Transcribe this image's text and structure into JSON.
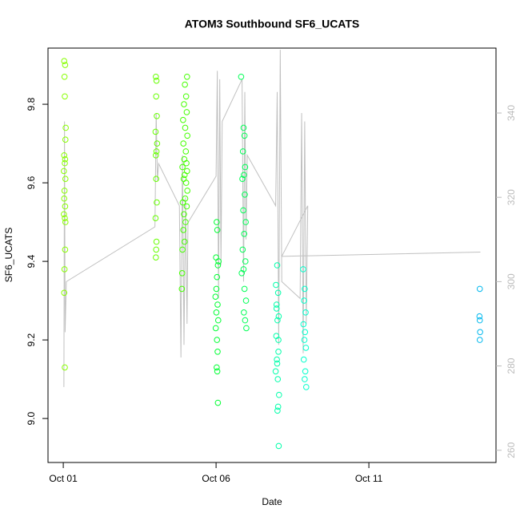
{
  "chart_data": {
    "type": "scatter",
    "title": "ATOM3 Southbound SF6_UCATS",
    "x_label": "Date",
    "y_label": "SF6_UCATS",
    "xlim": [
      -0.5,
      14.16
    ],
    "xticks": [
      {
        "value": 0,
        "label": "Oct 01"
      },
      {
        "value": 5,
        "label": "Oct 06"
      },
      {
        "value": 10,
        "label": "Oct 11"
      }
    ],
    "ylim": [
      8.888,
      9.943
    ],
    "yticks": [
      {
        "value": 9.0,
        "label": "9.0"
      },
      {
        "value": 9.2,
        "label": "9.2"
      },
      {
        "value": 9.4,
        "label": "9.4"
      },
      {
        "value": 9.6,
        "label": "9.6"
      },
      {
        "value": 9.8,
        "label": "9.8"
      }
    ],
    "y2lim": [
      257.1,
      355.4
    ],
    "y2ticks": [
      260,
      280,
      300,
      320,
      340
    ],
    "series": [
      {
        "type": "scatter",
        "color": "#88ff00",
        "x": [
          0.03,
          0.06,
          0.04,
          0.05,
          0.08,
          0.07,
          0.03,
          0.06,
          0.05,
          0.02,
          0.07,
          0.04,
          0.03,
          0.06,
          0.02,
          0.05,
          0.07,
          0.06,
          0.04,
          0.03,
          0.05
        ],
        "values": [
          9.91,
          9.9,
          9.87,
          9.82,
          9.74,
          9.71,
          9.67,
          9.66,
          9.65,
          9.63,
          9.61,
          9.58,
          9.56,
          9.54,
          9.52,
          9.51,
          9.5,
          9.43,
          9.38,
          9.32,
          9.13
        ]
      },
      {
        "type": "scatter",
        "color": "#66ff00",
        "x": [
          3.03,
          3.05,
          3.04,
          3.06,
          3.02,
          3.07,
          3.05,
          3.03,
          3.04,
          3.06,
          3.02,
          3.05,
          3.04,
          3.03
        ],
        "values": [
          9.87,
          9.86,
          9.82,
          9.77,
          9.73,
          9.7,
          9.68,
          9.67,
          9.61,
          9.55,
          9.51,
          9.45,
          9.43,
          9.41
        ]
      },
      {
        "type": "scatter",
        "color": "#44ff00",
        "x": [
          4.05,
          3.98,
          4.02,
          3.95,
          4.04,
          3.92,
          3.99,
          4.06,
          3.93,
          4.01,
          3.96,
          4.03,
          3.9,
          4.05,
          3.97,
          3.94,
          4.02,
          4.06,
          3.99,
          3.91,
          4.04,
          3.95,
          4.0,
          3.93,
          3.97,
          3.9,
          3.89,
          3.88
        ],
        "values": [
          9.87,
          9.85,
          9.82,
          9.8,
          9.78,
          9.76,
          9.74,
          9.72,
          9.7,
          9.68,
          9.66,
          9.65,
          9.64,
          9.63,
          9.62,
          9.61,
          9.6,
          9.58,
          9.56,
          9.55,
          9.54,
          9.52,
          9.5,
          9.48,
          9.45,
          9.43,
          9.37,
          9.33
        ]
      },
      {
        "type": "scatter",
        "color": "#00ff33",
        "x": [
          5.02,
          5.04,
          5.0,
          5.06,
          5.03,
          4.98,
          5.05,
          5.01,
          5.07,
          4.99,
          5.03,
          5.05,
          5.02,
          5.04,
          5.06,
          5.08,
          5.01
        ],
        "values": [
          9.5,
          9.48,
          9.41,
          9.39,
          9.36,
          9.31,
          9.29,
          9.27,
          9.25,
          9.23,
          9.2,
          9.17,
          9.13,
          9.12,
          9.04,
          9.4,
          9.33
        ]
      },
      {
        "type": "scatter",
        "color": "#00ff55",
        "x": [
          5.82,
          5.9,
          5.93,
          5.88,
          5.95,
          5.91,
          5.86,
          5.94,
          5.89,
          5.97,
          5.92,
          5.87,
          5.96,
          5.9,
          5.84,
          5.93,
          5.98,
          5.91,
          5.95,
          5.99
        ],
        "values": [
          9.87,
          9.74,
          9.72,
          9.68,
          9.64,
          9.62,
          9.61,
          9.57,
          9.53,
          9.5,
          9.47,
          9.43,
          9.4,
          9.38,
          9.37,
          9.33,
          9.3,
          9.27,
          9.25,
          9.23
        ]
      },
      {
        "type": "scatter",
        "color": "#00ffaa",
        "x": [
          7.0,
          6.96,
          7.03,
          6.98,
          7.05,
          7.01,
          6.97,
          7.04,
          6.99,
          6.95,
          7.02,
          7.06,
          7.03,
          7.01,
          7.05,
          6.98,
          7.04,
          7.0
        ],
        "values": [
          9.39,
          9.34,
          9.32,
          9.29,
          9.26,
          9.25,
          9.21,
          9.17,
          9.15,
          9.12,
          9.1,
          9.06,
          9.03,
          9.02,
          8.93,
          9.28,
          9.2,
          9.14
        ]
      },
      {
        "type": "scatter",
        "color": "#00ffcc",
        "x": [
          7.85,
          7.9,
          7.88,
          7.93,
          7.86,
          7.91,
          7.89,
          7.94,
          7.87,
          7.92,
          7.9,
          7.95
        ],
        "values": [
          9.38,
          9.33,
          9.3,
          9.27,
          9.24,
          9.22,
          9.2,
          9.18,
          9.15,
          9.12,
          9.1,
          9.08
        ]
      },
      {
        "type": "scatter",
        "color": "#00b8ee",
        "x": [
          13.63,
          13.62,
          13.63,
          13.64,
          13.63
        ],
        "values": [
          9.33,
          9.26,
          9.25,
          9.22,
          9.2
        ]
      },
      {
        "type": "line",
        "axis": "y2",
        "color": "#c0c0c0",
        "x": [
          0.02,
          0.04,
          0.06,
          0.1,
          3.0,
          3.04,
          3.08,
          3.12,
          3.8,
          3.85,
          3.9,
          3.95,
          4.0,
          4.05,
          4.08,
          5.0,
          5.04,
          5.08,
          5.12,
          5.16,
          5.2,
          5.85,
          5.9,
          5.94,
          5.98,
          6.02,
          6.95,
          7.0,
          7.05,
          7.1,
          7.15,
          7.75,
          7.8,
          7.85,
          7.9,
          7.95,
          8.0,
          7.15,
          13.65
        ],
        "values": [
          275,
          338,
          288,
          300,
          313,
          340,
          324,
          328,
          318,
          282,
          330,
          285,
          320,
          290,
          314,
          325,
          350,
          296,
          348,
          304,
          338,
          348,
          300,
          345,
          310,
          330,
          318,
          345,
          285,
          355,
          300,
          296,
          340,
          283,
          338,
          290,
          318,
          306,
          307
        ]
      }
    ]
  }
}
